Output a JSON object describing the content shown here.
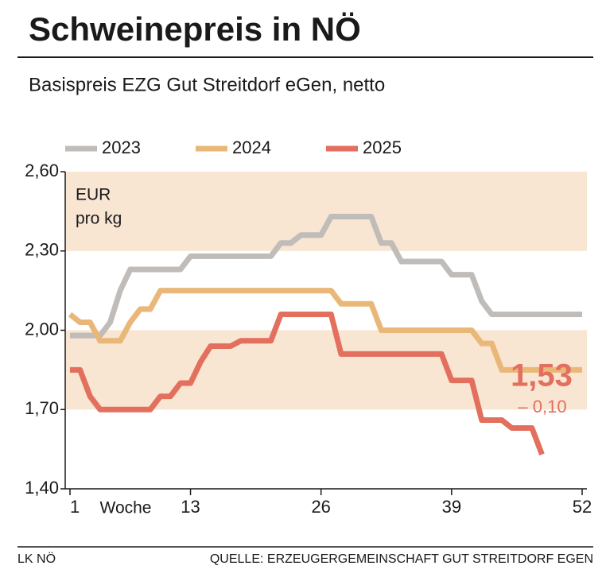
{
  "chart_data": {
    "type": "line",
    "title": "Schweinepreis in NÖ",
    "subtitle": "Basispreis EZG Gut Streitdorf eGen, netto",
    "unit_label": [
      "EUR",
      "pro kg"
    ],
    "x_label": "Woche",
    "x": [
      1,
      2,
      3,
      4,
      5,
      6,
      7,
      8,
      9,
      10,
      11,
      12,
      13,
      14,
      15,
      16,
      17,
      18,
      19,
      20,
      21,
      22,
      23,
      24,
      25,
      26,
      27,
      28,
      29,
      30,
      31,
      32,
      33,
      34,
      35,
      36,
      37,
      38,
      39,
      40,
      41,
      42,
      43,
      44,
      45,
      46,
      47,
      48,
      49,
      50,
      51,
      52
    ],
    "xlim": [
      1,
      52
    ],
    "xticks": [
      1,
      13,
      26,
      39,
      52
    ],
    "ylim": [
      1.4,
      2.6
    ],
    "yticks": [
      {
        "value": 1.4,
        "label": "1,40"
      },
      {
        "value": 1.7,
        "label": "1,70"
      },
      {
        "value": 2.0,
        "label": "2,00"
      },
      {
        "value": 2.3,
        "label": "2,30"
      },
      {
        "value": 2.6,
        "label": "2,60"
      }
    ],
    "bands": [
      [
        1.7,
        2.0
      ],
      [
        2.3,
        2.6
      ]
    ],
    "band_color": "#f8e5d2",
    "series": [
      {
        "name": "2023",
        "color": "#bfbcb9",
        "values": [
          1.98,
          1.98,
          1.98,
          1.98,
          2.03,
          2.15,
          2.23,
          2.23,
          2.23,
          2.23,
          2.23,
          2.23,
          2.28,
          2.28,
          2.28,
          2.28,
          2.28,
          2.28,
          2.28,
          2.28,
          2.28,
          2.33,
          2.33,
          2.36,
          2.36,
          2.36,
          2.43,
          2.43,
          2.43,
          2.43,
          2.43,
          2.33,
          2.33,
          2.26,
          2.26,
          2.26,
          2.26,
          2.26,
          2.21,
          2.21,
          2.21,
          2.11,
          2.06,
          2.06,
          2.06,
          2.06,
          2.06,
          2.06,
          2.06,
          2.06,
          2.06,
          2.06
        ]
      },
      {
        "name": "2024",
        "color": "#e9b878",
        "values": [
          2.06,
          2.03,
          2.03,
          1.96,
          1.96,
          1.96,
          2.03,
          2.08,
          2.08,
          2.15,
          2.15,
          2.15,
          2.15,
          2.15,
          2.15,
          2.15,
          2.15,
          2.15,
          2.15,
          2.15,
          2.15,
          2.15,
          2.15,
          2.15,
          2.15,
          2.15,
          2.15,
          2.1,
          2.1,
          2.1,
          2.1,
          2.0,
          2.0,
          2.0,
          2.0,
          2.0,
          2.0,
          2.0,
          2.0,
          2.0,
          2.0,
          1.95,
          1.95,
          1.85,
          1.85,
          1.85,
          1.85,
          1.85,
          1.85,
          1.85,
          1.85,
          1.85
        ]
      },
      {
        "name": "2025",
        "color": "#e36f5e",
        "values": [
          1.85,
          1.85,
          1.75,
          1.7,
          1.7,
          1.7,
          1.7,
          1.7,
          1.7,
          1.75,
          1.75,
          1.8,
          1.8,
          1.88,
          1.94,
          1.94,
          1.94,
          1.96,
          1.96,
          1.96,
          1.96,
          2.06,
          2.06,
          2.06,
          2.06,
          2.06,
          2.06,
          1.91,
          1.91,
          1.91,
          1.91,
          1.91,
          1.91,
          1.91,
          1.91,
          1.91,
          1.91,
          1.91,
          1.81,
          1.81,
          1.81,
          1.66,
          1.66,
          1.66,
          1.63,
          1.63,
          1.63,
          1.53,
          null,
          null,
          null,
          null
        ]
      }
    ],
    "annotation_value": "1,53",
    "annotation_change": "– 0,10",
    "footer_left": "LK NÖ",
    "source": "QUELLE: ERZEUGERGEMEINSCHAFT GUT STREITDORF EGEN"
  }
}
